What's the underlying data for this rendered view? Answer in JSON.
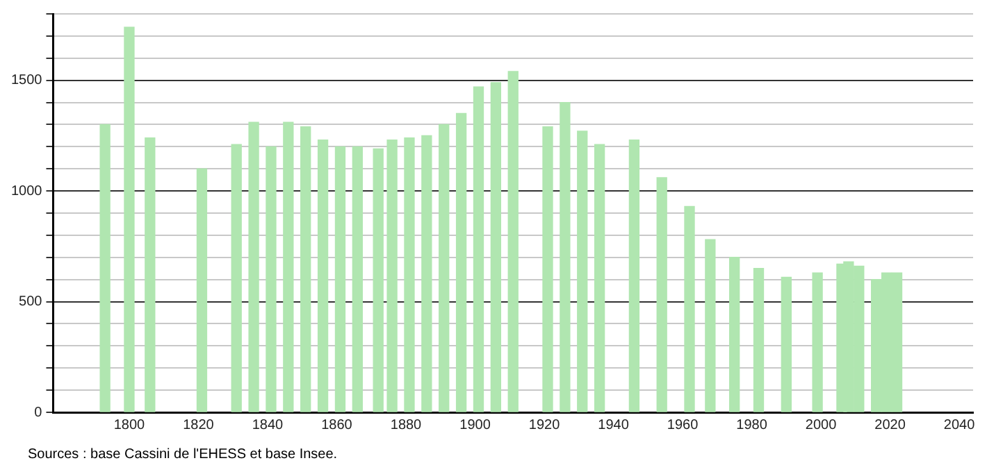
{
  "chart_data": {
    "type": "bar",
    "x": [
      1793,
      1800,
      1806,
      1821,
      1831,
      1836,
      1841,
      1846,
      1851,
      1856,
      1861,
      1866,
      1872,
      1876,
      1881,
      1886,
      1891,
      1896,
      1901,
      1906,
      1911,
      1921,
      1926,
      1931,
      1936,
      1946,
      1954,
      1962,
      1968,
      1975,
      1982,
      1990,
      1999,
      2006,
      2008,
      2011,
      2016,
      2019,
      2022
    ],
    "values": [
      1300,
      1740,
      1240,
      1100,
      1210,
      1310,
      1200,
      1310,
      1290,
      1230,
      1200,
      1200,
      1190,
      1230,
      1240,
      1250,
      1300,
      1350,
      1470,
      1490,
      1540,
      1290,
      1400,
      1270,
      1210,
      1230,
      1060,
      930,
      780,
      700,
      650,
      610,
      630,
      670,
      680,
      660,
      600,
      630,
      630
    ],
    "color": "#b0e6b0",
    "xlim": [
      1778,
      2044
    ],
    "xticks": [
      1800,
      1820,
      1840,
      1860,
      1880,
      1900,
      1920,
      1940,
      1960,
      1980,
      2000,
      2020,
      2040
    ],
    "ylim": [
      0,
      1800
    ],
    "yticks": [
      0,
      {
        "value": 100,
        "label": null
      },
      {
        "value": 200,
        "label": null
      },
      {
        "value": 300,
        "label": null
      },
      {
        "value": 400,
        "label": null
      },
      500,
      {
        "value": 600,
        "label": null
      },
      {
        "value": 700,
        "label": null
      },
      {
        "value": 800,
        "label": null
      },
      {
        "value": 900,
        "label": null
      },
      1000,
      {
        "value": 1100,
        "label": null
      },
      {
        "value": 1200,
        "label": null
      },
      {
        "value": 1300,
        "label": null
      },
      {
        "value": 1400,
        "label": null
      },
      1500,
      {
        "value": 1600,
        "label": null
      },
      {
        "value": 1700,
        "label": null
      },
      {
        "value": 1800,
        "label": null
      }
    ],
    "grid": "y",
    "legend": false,
    "annotations": [
      "Sources : base Cassini de l'EHESS et base Insee."
    ]
  }
}
